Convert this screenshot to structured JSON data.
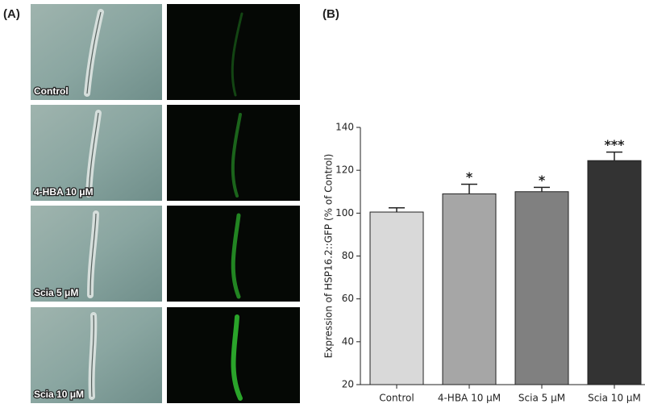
{
  "panel_a": {
    "label": "(A)",
    "image_labels": [
      "Control",
      "4-HBA 10 μM",
      "Scia 5 μM",
      "Scia 10 μM"
    ]
  },
  "chart_data": {
    "type": "bar",
    "panel_label": "(B)",
    "y_label": "Expression of HSP16.2::GFP (% of Control)",
    "categories": [
      "Control",
      "4-HBA 10 μM",
      "Scia 5 μM",
      "Scia 10 μM"
    ],
    "values": [
      100.5,
      109,
      110,
      124.5
    ],
    "errors": [
      2,
      4.5,
      2,
      4
    ],
    "annotations": [
      null,
      "*",
      "*",
      "***"
    ],
    "colors": [
      "#d9d9d9",
      "#a6a6a6",
      "#808080",
      "#333333"
    ],
    "ylim": [
      20,
      140
    ],
    "yticks": [
      20,
      40,
      60,
      80,
      100,
      120,
      140
    ]
  }
}
